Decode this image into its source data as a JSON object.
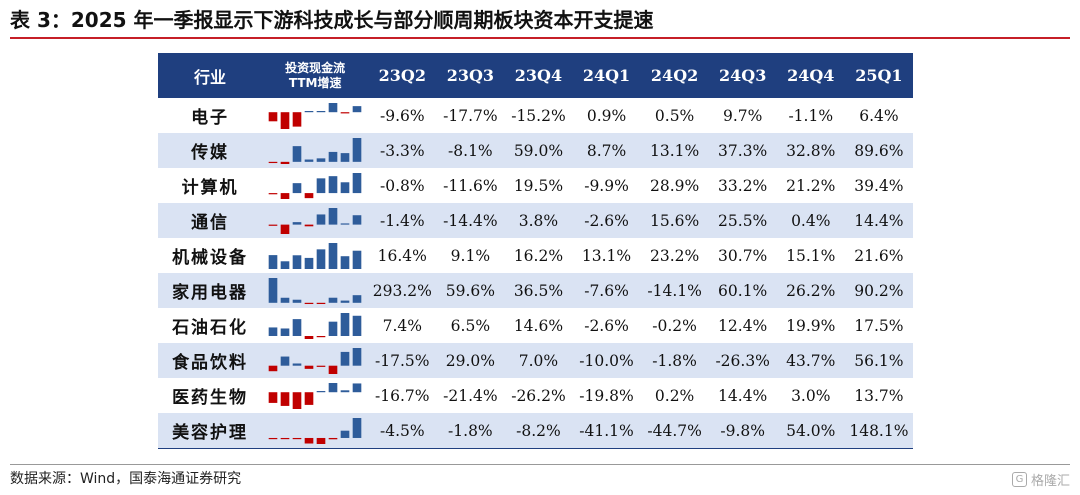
{
  "title": "表 3：2025 年一季报显示下游科技成长与部分顺周期板块资本开支提速",
  "header": {
    "industry": "行业",
    "sparkline_line1": "投资现金流",
    "sparkline_line2": "TTM增速",
    "quarters": [
      "23Q2",
      "23Q3",
      "23Q4",
      "24Q1",
      "24Q2",
      "24Q3",
      "24Q4",
      "25Q1"
    ]
  },
  "rows": [
    {
      "industry": "电子",
      "values": [
        -9.6,
        -17.7,
        -15.2,
        0.9,
        0.5,
        9.7,
        -1.1,
        6.4
      ],
      "labels": [
        "-9.6%",
        "-17.7%",
        "-15.2%",
        "0.9%",
        "0.5%",
        "9.7%",
        "-1.1%",
        "6.4%"
      ]
    },
    {
      "industry": "传媒",
      "values": [
        -3.3,
        -8.1,
        59.0,
        8.7,
        13.1,
        37.3,
        32.8,
        89.6
      ],
      "labels": [
        "-3.3%",
        "-8.1%",
        "59.0%",
        "8.7%",
        "13.1%",
        "37.3%",
        "32.8%",
        "89.6%"
      ]
    },
    {
      "industry": "计算机",
      "values": [
        -0.8,
        -11.6,
        19.5,
        -9.9,
        28.9,
        33.2,
        21.2,
        39.4
      ],
      "labels": [
        "-0.8%",
        "-11.6%",
        "19.5%",
        "-9.9%",
        "28.9%",
        "33.2%",
        "21.2%",
        "39.4%"
      ]
    },
    {
      "industry": "通信",
      "values": [
        -1.4,
        -14.4,
        3.8,
        -2.6,
        15.6,
        25.5,
        0.4,
        14.4
      ],
      "labels": [
        "-1.4%",
        "-14.4%",
        "3.8%",
        "-2.6%",
        "15.6%",
        "25.5%",
        "0.4%",
        "14.4%"
      ]
    },
    {
      "industry": "机械设备",
      "values": [
        16.4,
        9.1,
        16.2,
        13.1,
        23.2,
        30.7,
        15.1,
        21.6
      ],
      "labels": [
        "16.4%",
        "9.1%",
        "16.2%",
        "13.1%",
        "23.2%",
        "30.7%",
        "15.1%",
        "21.6%"
      ]
    },
    {
      "industry": "家用电器",
      "values": [
        293.2,
        59.6,
        36.5,
        -7.6,
        -14.1,
        60.1,
        26.2,
        90.2
      ],
      "labels": [
        "293.2%",
        "59.6%",
        "36.5%",
        "-7.6%",
        "-14.1%",
        "60.1%",
        "26.2%",
        "90.2%"
      ]
    },
    {
      "industry": "石油石化",
      "values": [
        7.4,
        6.5,
        14.6,
        -2.6,
        -0.2,
        12.4,
        19.9,
        17.5
      ],
      "labels": [
        "7.4%",
        "6.5%",
        "14.6%",
        "-2.6%",
        "-0.2%",
        "12.4%",
        "19.9%",
        "17.5%"
      ]
    },
    {
      "industry": "食品饮料",
      "values": [
        -17.5,
        29.0,
        7.0,
        -10.0,
        -1.8,
        -26.3,
        43.7,
        56.1
      ],
      "labels": [
        "-17.5%",
        "29.0%",
        "7.0%",
        "-10.0%",
        "-1.8%",
        "-26.3%",
        "43.7%",
        "56.1%"
      ]
    },
    {
      "industry": "医药生物",
      "values": [
        -16.7,
        -21.4,
        -26.2,
        -19.8,
        0.2,
        14.4,
        3.0,
        13.7
      ],
      "labels": [
        "-16.7%",
        "-21.4%",
        "-26.2%",
        "-19.8%",
        "0.2%",
        "14.4%",
        "3.0%",
        "13.7%"
      ]
    },
    {
      "industry": "美容护理",
      "values": [
        -4.5,
        -1.8,
        -8.2,
        -41.1,
        -44.7,
        -9.8,
        54.0,
        148.1
      ],
      "labels": [
        "-4.5%",
        "-1.8%",
        "-8.2%",
        "-41.1%",
        "-44.7%",
        "-9.8%",
        "54.0%",
        "148.1%"
      ]
    }
  ],
  "colors": {
    "header_bg": "#1f3f7f",
    "stripe": "#dae3f3",
    "positive_bar": "#2e5c9a",
    "negative_bar": "#c00000",
    "title_rule": "#c61f27"
  },
  "source": "数据来源：Wind，国泰海通证券研究",
  "watermark": "格隆汇",
  "watermark_icon": "G"
}
